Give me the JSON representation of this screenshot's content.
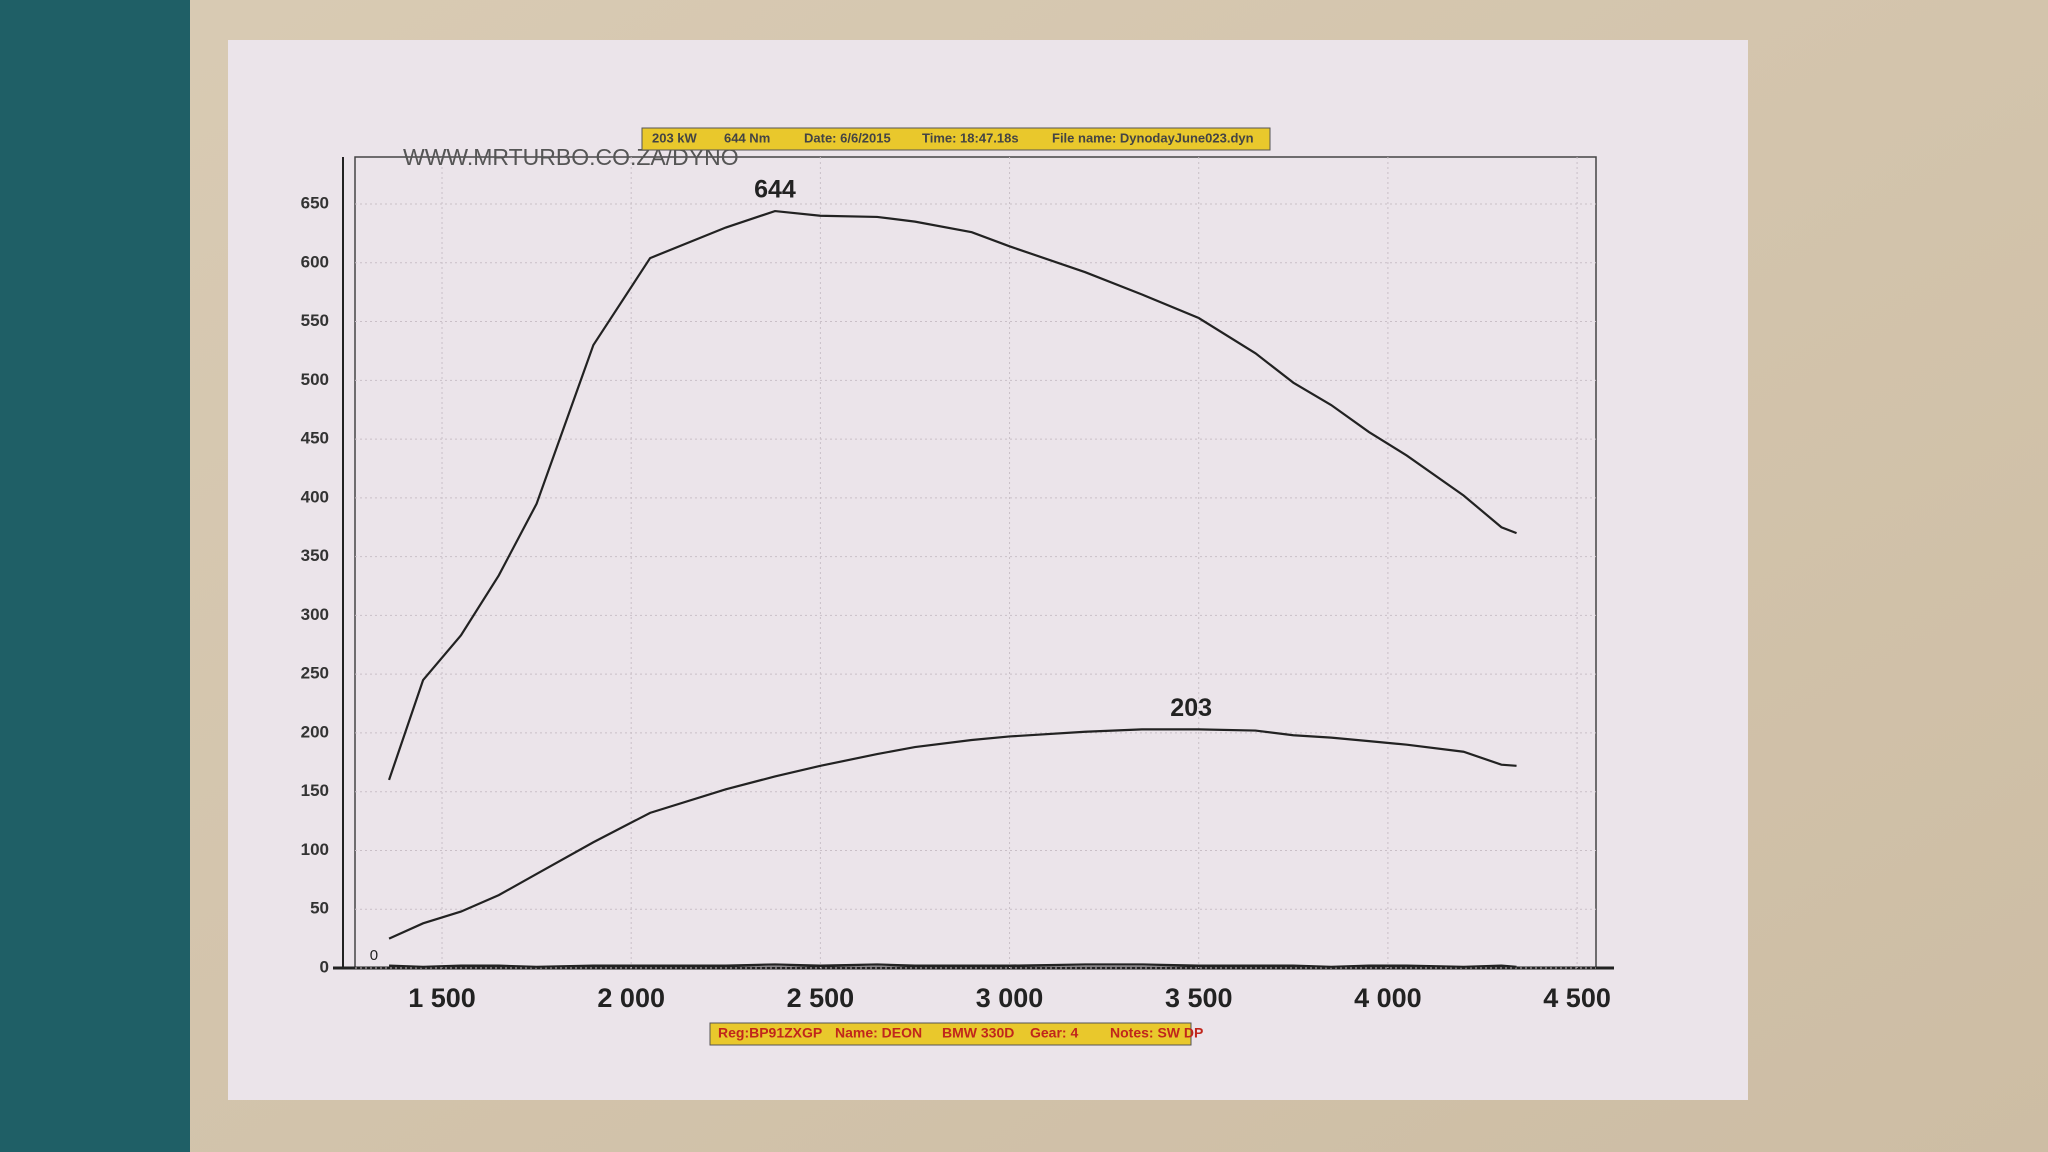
{
  "chart_data": {
    "type": "line",
    "watermark": "WWW.MRTURBO.CO.ZA/DYNO",
    "header": [
      "203 kW",
      "644 Nm",
      "Date: 6/6/2015",
      "Time: 18:47.18s",
      "File name: DynodayJune023.dyn"
    ],
    "footer": [
      "Reg:BP91ZXGP",
      "Name: DEON",
      "BMW 330D",
      "Gear: 4",
      "Notes: SW DP"
    ],
    "x": [
      1360,
      1450,
      1550,
      1650,
      1750,
      1900,
      2050,
      2250,
      2380,
      2500,
      2650,
      2750,
      2900,
      3000,
      3200,
      3350,
      3500,
      3650,
      3750,
      3850,
      3950,
      4050,
      4200,
      4300,
      4340
    ],
    "series": [
      {
        "color": "#222222",
        "values": [
          160,
          245,
          283,
          334,
          395,
          530,
          604,
          630,
          644,
          640,
          639,
          635,
          626,
          614,
          592,
          573,
          553,
          523,
          498,
          479,
          456,
          436,
          402,
          375,
          370
        ]
      },
      {
        "color": "#222222",
        "values": [
          25,
          38,
          48,
          62,
          80,
          107,
          132,
          152,
          163,
          172,
          182,
          188,
          194,
          197,
          201,
          203,
          203,
          202,
          198,
          196,
          193,
          190,
          184,
          173,
          172
        ]
      },
      {
        "color": "#222222",
        "values": [
          2,
          1,
          2,
          2,
          1,
          2,
          2,
          2,
          3,
          2,
          3,
          2,
          2,
          2,
          3,
          3,
          2,
          2,
          2,
          1,
          2,
          2,
          1,
          2,
          1
        ]
      }
    ],
    "annotations": [
      {
        "text": "644",
        "x": 2380,
        "y": 644
      },
      {
        "text": "203",
        "x": 3480,
        "y": 203
      },
      {
        "text": "0",
        "x": 1320,
        "y": 0
      }
    ],
    "xlim": [
      1270,
      4550
    ],
    "ylim": [
      0,
      690
    ],
    "xticks": [
      {
        "value": 1500,
        "label": "1 500"
      },
      {
        "value": 2000,
        "label": "2 000"
      },
      {
        "value": 2500,
        "label": "2 500"
      },
      {
        "value": 3000,
        "label": "3 000"
      },
      {
        "value": 3500,
        "label": "3 500"
      },
      {
        "value": 4000,
        "label": "4 000"
      },
      {
        "value": 4500,
        "label": "4 500"
      }
    ],
    "yticks": [
      0,
      50,
      100,
      150,
      200,
      250,
      300,
      350,
      400,
      450,
      500,
      550,
      600,
      650
    ],
    "grid": true
  }
}
